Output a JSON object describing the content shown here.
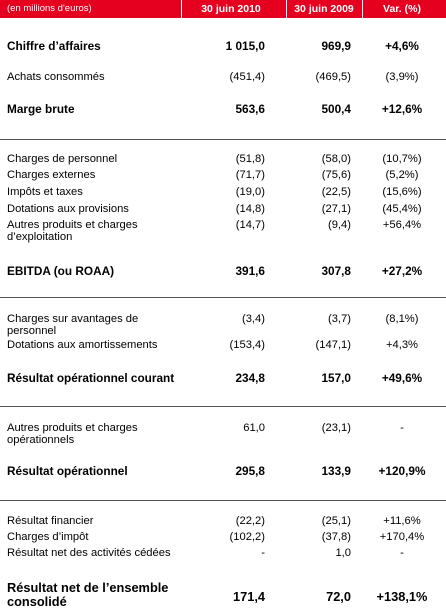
{
  "header": {
    "unit": "(en millions d'euros)",
    "col1": "30 juin 2010",
    "col2": "30 juin 2009",
    "col3": "Var. (%)"
  },
  "rows": [
    {
      "label": "Chiffre d’affaires",
      "v1": "1 015,0",
      "v2": "969,9",
      "v3": "+4,6%"
    },
    {
      "label": "Achats consommés",
      "v1": "(451,4)",
      "v2": "(469,5)",
      "v3": "(3,9%)"
    },
    {
      "label": "Marge brute",
      "v1": "563,6",
      "v2": "500,4",
      "v3": "+12,6%"
    },
    {
      "label": "Charges de personnel",
      "v1": "(51,8)",
      "v2": "(58,0)",
      "v3": "(10,7%)"
    },
    {
      "label": "Charges externes",
      "v1": "(71,7)",
      "v2": "(75,6)",
      "v3": "(5,2%)"
    },
    {
      "label": "Impôts et taxes",
      "v1": "(19,0)",
      "v2": "(22,5)",
      "v3": "(15,6%)"
    },
    {
      "label": "Dotations aux provisions",
      "v1": "(14,8)",
      "v2": "(27,1)",
      "v3": "(45,4%)"
    },
    {
      "label_line1": "Autres produits et charges",
      "label_line2": "d’exploitation",
      "v1": "(14,7)",
      "v2": "(9,4)",
      "v3": "+56,4%"
    },
    {
      "label": "EBITDA (ou ROAA)",
      "v1": "391,6",
      "v2": "307,8",
      "v3": "+27,2%"
    },
    {
      "label_line1": "Charges sur avantages de",
      "label_line2": "personnel",
      "v1": "(3,4)",
      "v2": "(3,7)",
      "v3": "(8,1%)"
    },
    {
      "label": "Dotations aux amortissements",
      "v1": "(153,4)",
      "v2": "(147,1)",
      "v3": "+4,3%"
    },
    {
      "label": "Résultat opérationnel courant",
      "v1": "234,8",
      "v2": "157,0",
      "v3": "+49,6%"
    },
    {
      "label_line1": "Autres produits et charges",
      "label_line2": "opérationnels",
      "v1": "61,0",
      "v2": "(23,1)",
      "v3": "-"
    },
    {
      "label": "Résultat opérationnel",
      "v1": "295,8",
      "v2": "133,9",
      "v3": "+120,9%"
    },
    {
      "label": "Résultat financier",
      "v1": "(22,2)",
      "v2": "(25,1)",
      "v3": "+11,6%"
    },
    {
      "label": "Charges d’impôt",
      "v1": "(102,2)",
      "v2": "(37,8)",
      "v3": "+170,4%"
    },
    {
      "label": "Résultat net des activités cédées",
      "v1": "-",
      "v2": "1,0",
      "v3": "-"
    },
    {
      "label_line1": "Résultat net de l’ensemble",
      "label_line2": "consolidé",
      "v1": "171,4",
      "v2": "72,0",
      "v3": "+138,1%"
    }
  ]
}
